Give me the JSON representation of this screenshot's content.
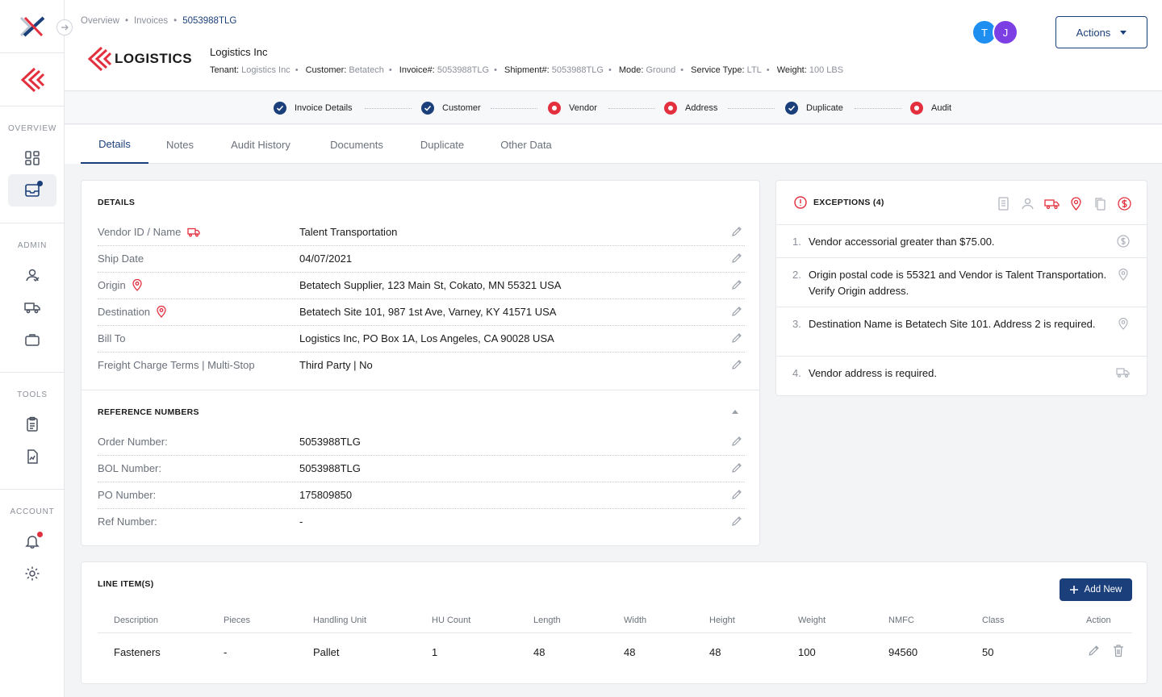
{
  "sidebar": {
    "sections": {
      "overview": "OVERVIEW",
      "admin": "ADMIN",
      "tools": "TOOLS",
      "account": "ACCOUNT"
    },
    "items": [
      {
        "name": "dashboard-icon"
      },
      {
        "name": "inbox-icon",
        "active": true,
        "badge": true
      },
      {
        "name": "user-admin-icon"
      },
      {
        "name": "truck-icon"
      },
      {
        "name": "briefcase-icon"
      },
      {
        "name": "clipboard-icon"
      },
      {
        "name": "report-file-icon"
      },
      {
        "name": "bell-icon",
        "badge": true
      },
      {
        "name": "gear-icon"
      }
    ]
  },
  "header": {
    "breadcrumb": {
      "overview": "Overview",
      "invoices": "Invoices",
      "current": "5053988TLG"
    },
    "logo_text": "LOGISTICS",
    "company": "Logistics Inc",
    "meta": {
      "tenant_label": "Tenant:",
      "tenant": "Logistics Inc",
      "customer_label": "Customer:",
      "customer": "Betatech",
      "invoice_label": "Invoice#:",
      "invoice": "5053988TLG",
      "shipment_label": "Shipment#:",
      "shipment": "5053988TLG",
      "mode_label": "Mode:",
      "mode": "Ground",
      "service_label": "Service Type:",
      "service": "LTL",
      "weight_label": "Weight:",
      "weight": "100 LBS"
    },
    "avatars": [
      {
        "initial": "T",
        "color": "#1e8ef0"
      },
      {
        "initial": "J",
        "color": "#7b3fe4"
      }
    ],
    "actions_label": "Actions"
  },
  "stepper": [
    {
      "label": "Invoice Details",
      "status": "done"
    },
    {
      "label": "Customer",
      "status": "done"
    },
    {
      "label": "Vendor",
      "status": "error"
    },
    {
      "label": "Address",
      "status": "error"
    },
    {
      "label": "Duplicate",
      "status": "done"
    },
    {
      "label": "Audit",
      "status": "error"
    }
  ],
  "tabs": [
    "Details",
    "Notes",
    "Audit History",
    "Documents",
    "Duplicate",
    "Other Data"
  ],
  "details": {
    "title": "DETAILS",
    "rows": [
      {
        "label": "Vendor ID / Name",
        "value": "Talent Transportation"
      },
      {
        "label": "Ship Date",
        "value": "04/07/2021"
      },
      {
        "label": "Origin",
        "value": "Betatech Supplier, 123 Main St, Cokato, MN 55321 USA"
      },
      {
        "label": "Destination",
        "value": "Betatech Site 101, 987 1st Ave, Varney, KY 41571 USA"
      },
      {
        "label": "Bill To",
        "value": "Logistics Inc, PO Box 1A, Los Angeles, CA 90028 USA"
      },
      {
        "label": "Freight Charge Terms | Multi-Stop",
        "value": "Third Party | No"
      }
    ]
  },
  "reference": {
    "title": "REFERENCE NUMBERS",
    "rows": [
      {
        "label": "Order Number:",
        "value": "5053988TLG"
      },
      {
        "label": "BOL Number:",
        "value": "5053988TLG"
      },
      {
        "label": "PO Number:",
        "value": "175809850"
      },
      {
        "label": "Ref Number:",
        "value": "-"
      }
    ]
  },
  "exceptions": {
    "title": "EXCEPTIONS (4)",
    "items": [
      {
        "num": "1.",
        "text": "Vendor accessorial greater than $75.00.",
        "icon": "dollar-icon"
      },
      {
        "num": "2.",
        "text": "Origin postal code is 55321 and Vendor is Talent Transportation. Verify Origin address.",
        "icon": "location-pin-icon"
      },
      {
        "num": "3.",
        "text": "Destination Name is Betatech Site 101. Address 2 is required.",
        "icon": "location-pin-icon"
      },
      {
        "num": "4.",
        "text": "Vendor address is required.",
        "icon": "truck-icon"
      }
    ]
  },
  "line_items": {
    "title": "LINE ITEM(S)",
    "add_label": "Add New",
    "columns": [
      "Description",
      "Pieces",
      "Handling Unit",
      "HU Count",
      "Length",
      "Width",
      "Height",
      "Weight",
      "NMFC",
      "Class",
      "Action"
    ],
    "rows": [
      [
        "Fasteners",
        "-",
        "Pallet",
        "1",
        "48",
        "48",
        "48",
        "100",
        "94560",
        "50"
      ]
    ]
  },
  "colors": {
    "primary": "#1b3f7a",
    "error": "#e3303f",
    "muted": "#8a8f99"
  }
}
